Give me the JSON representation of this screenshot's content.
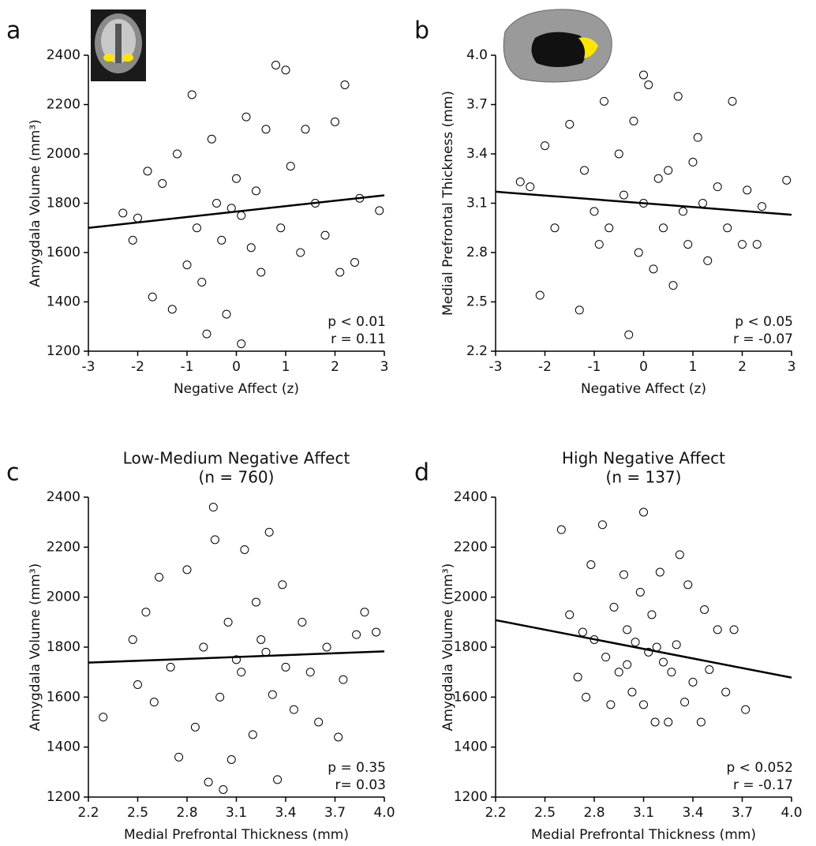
{
  "chart_data": [
    {
      "type": "scatter",
      "panel": "a",
      "xlabel": "Negative Affect (z)",
      "ylabel": "Amygdala Volume (mm³)",
      "xlim": [
        -3,
        3
      ],
      "ylim": [
        1200,
        2400
      ],
      "xticks": [
        -3,
        -2,
        -1,
        0,
        1,
        2,
        3
      ],
      "yticks": [
        1200,
        1400,
        1600,
        1800,
        2000,
        2200,
        2400
      ],
      "color": "#000000",
      "annotations": [
        "p < 0.01",
        "r = 0.11"
      ],
      "fit": {
        "x": [
          -3,
          3
        ],
        "y": [
          1700,
          1832
        ]
      },
      "x": [
        -2.3,
        -2.1,
        -2.0,
        -1.8,
        -1.7,
        -1.5,
        -1.3,
        -1.2,
        -1.0,
        -0.9,
        -0.8,
        -0.7,
        -0.6,
        -0.5,
        -0.4,
        -0.3,
        -0.2,
        0,
        0.1,
        0.1,
        0.2,
        0.3,
        0.4,
        0.5,
        0.6,
        0.8,
        0.9,
        1.0,
        1.1,
        1.3,
        1.4,
        1.6,
        1.8,
        2.0,
        2.1,
        2.2,
        2.4,
        2.5,
        2.9,
        -0.1
      ],
      "y": [
        1760,
        1650,
        1740,
        1930,
        1420,
        1880,
        1370,
        2000,
        1550,
        2240,
        1700,
        1480,
        1270,
        2060,
        1800,
        1650,
        1350,
        1900,
        1230,
        1750,
        2150,
        1620,
        1850,
        1520,
        2100,
        2360,
        1700,
        2340,
        1950,
        1600,
        2100,
        1800,
        1670,
        2130,
        1520,
        2280,
        1560,
        1820,
        1770,
        1780
      ]
    },
    {
      "type": "scatter",
      "panel": "b",
      "xlabel": "Negative Affect (z)",
      "ylabel": "Medial Prefrontal Thickness (mm)",
      "xlim": [
        -3,
        3
      ],
      "ylim": [
        2.2,
        4.0
      ],
      "xticks": [
        -3,
        -2,
        -1,
        0,
        1,
        2,
        3
      ],
      "yticks": [
        2.2,
        2.5,
        2.8,
        3.1,
        3.4,
        3.7,
        {
          "value": 4,
          "label": "4.0"
        }
      ],
      "color": "#000000",
      "annotations": [
        "p < 0.05",
        "r = -0.07"
      ],
      "fit": {
        "x": [
          -3,
          3
        ],
        "y": [
          3.17,
          3.03
        ]
      },
      "x": [
        -2.5,
        -2.1,
        -2.0,
        -1.8,
        -1.5,
        -1.3,
        -1.2,
        -1.0,
        -0.9,
        -0.8,
        -0.7,
        -0.5,
        -0.4,
        -0.3,
        -0.2,
        -0.1,
        0,
        0,
        0.1,
        0.2,
        0.3,
        0.4,
        0.5,
        0.6,
        0.7,
        0.8,
        0.9,
        1.0,
        1.2,
        1.3,
        1.5,
        1.7,
        1.8,
        2.0,
        2.1,
        2.3,
        2.4,
        2.9,
        -2.3,
        1.1
      ],
      "y": [
        3.23,
        2.54,
        3.45,
        2.95,
        3.58,
        2.45,
        3.3,
        3.05,
        2.85,
        3.72,
        2.95,
        3.4,
        3.15,
        2.3,
        3.6,
        2.8,
        3.88,
        3.1,
        3.82,
        2.7,
        3.25,
        2.95,
        3.3,
        2.6,
        3.75,
        3.05,
        2.85,
        3.35,
        3.1,
        2.75,
        3.2,
        2.95,
        3.72,
        2.85,
        3.18,
        2.85,
        3.08,
        3.24,
        3.2,
        3.5
      ]
    },
    {
      "type": "scatter",
      "panel": "c",
      "title": "Low-Medium Negative Affect",
      "subtitle": "(n = 760)",
      "xlabel": "Medial Prefrontal Thickness (mm)",
      "ylabel": "Amygdala Volume (mm³)",
      "xlim": [
        2.2,
        4.0
      ],
      "ylim": [
        1200,
        2400
      ],
      "xticks": [
        2.2,
        2.5,
        2.8,
        3.1,
        3.4,
        3.7,
        {
          "value": 4,
          "label": "4.0"
        }
      ],
      "yticks": [
        1200,
        1400,
        1600,
        1800,
        2000,
        2200,
        2400
      ],
      "color": "#000000",
      "annotations": [
        "p = 0.35",
        "r= 0.03"
      ],
      "fit": {
        "x": [
          2.2,
          4.0
        ],
        "y": [
          1738,
          1783
        ]
      },
      "x": [
        2.29,
        2.47,
        2.5,
        2.55,
        2.6,
        2.63,
        2.7,
        2.75,
        2.8,
        2.85,
        2.9,
        2.93,
        2.97,
        3.0,
        3.02,
        3.05,
        3.07,
        3.1,
        3.13,
        3.15,
        3.2,
        3.22,
        3.25,
        3.3,
        3.32,
        3.35,
        3.38,
        3.4,
        3.45,
        3.5,
        3.55,
        3.6,
        3.65,
        3.72,
        3.75,
        3.83,
        3.88,
        3.95,
        2.96,
        3.28
      ],
      "y": [
        1520,
        1830,
        1650,
        1940,
        1580,
        2080,
        1720,
        1360,
        2110,
        1480,
        1800,
        1260,
        2230,
        1600,
        1230,
        1900,
        1350,
        1750,
        1700,
        2190,
        1450,
        1980,
        1830,
        2260,
        1610,
        1270,
        2050,
        1720,
        1550,
        1900,
        1700,
        1500,
        1800,
        1440,
        1670,
        1850,
        1940,
        1860,
        2360,
        1780
      ]
    },
    {
      "type": "scatter",
      "panel": "d",
      "title": "High Negative Affect",
      "subtitle": "(n = 137)",
      "xlabel": "Medial Prefrontal Thickness (mm)",
      "ylabel": "Amygdala Volume (mm³)",
      "xlim": [
        2.2,
        4.0
      ],
      "ylim": [
        1200,
        2400
      ],
      "xticks": [
        2.2,
        2.5,
        2.8,
        3.1,
        3.4,
        3.7,
        {
          "value": 4,
          "label": "4.0"
        }
      ],
      "yticks": [
        1200,
        1400,
        1600,
        1800,
        2000,
        2200,
        2400
      ],
      "color": "#000000",
      "annotations": [
        "p < 0.052",
        "r = -0.17"
      ],
      "fit": {
        "x": [
          2.2,
          4.0
        ],
        "y": [
          1908,
          1678
        ]
      },
      "x": [
        2.6,
        2.65,
        2.7,
        2.73,
        2.78,
        2.8,
        2.85,
        2.87,
        2.9,
        2.92,
        2.95,
        2.98,
        3.0,
        3.03,
        3.05,
        3.08,
        3.1,
        3.1,
        3.13,
        3.15,
        3.17,
        3.2,
        3.22,
        3.25,
        3.27,
        3.3,
        3.32,
        3.35,
        3.37,
        3.4,
        3.45,
        3.47,
        3.5,
        3.55,
        3.6,
        3.65,
        3.72,
        2.75,
        3.0,
        3.18
      ],
      "y": [
        2270,
        1930,
        1680,
        1860,
        2130,
        1830,
        2290,
        1760,
        1570,
        1960,
        1700,
        2090,
        1870,
        1620,
        1820,
        2020,
        2340,
        1570,
        1780,
        1930,
        1500,
        2100,
        1740,
        1500,
        1700,
        1810,
        2170,
        1580,
        2050,
        1660,
        1500,
        1950,
        1710,
        1870,
        1620,
        1870,
        1550,
        1600,
        1730,
        1800
      ]
    }
  ]
}
